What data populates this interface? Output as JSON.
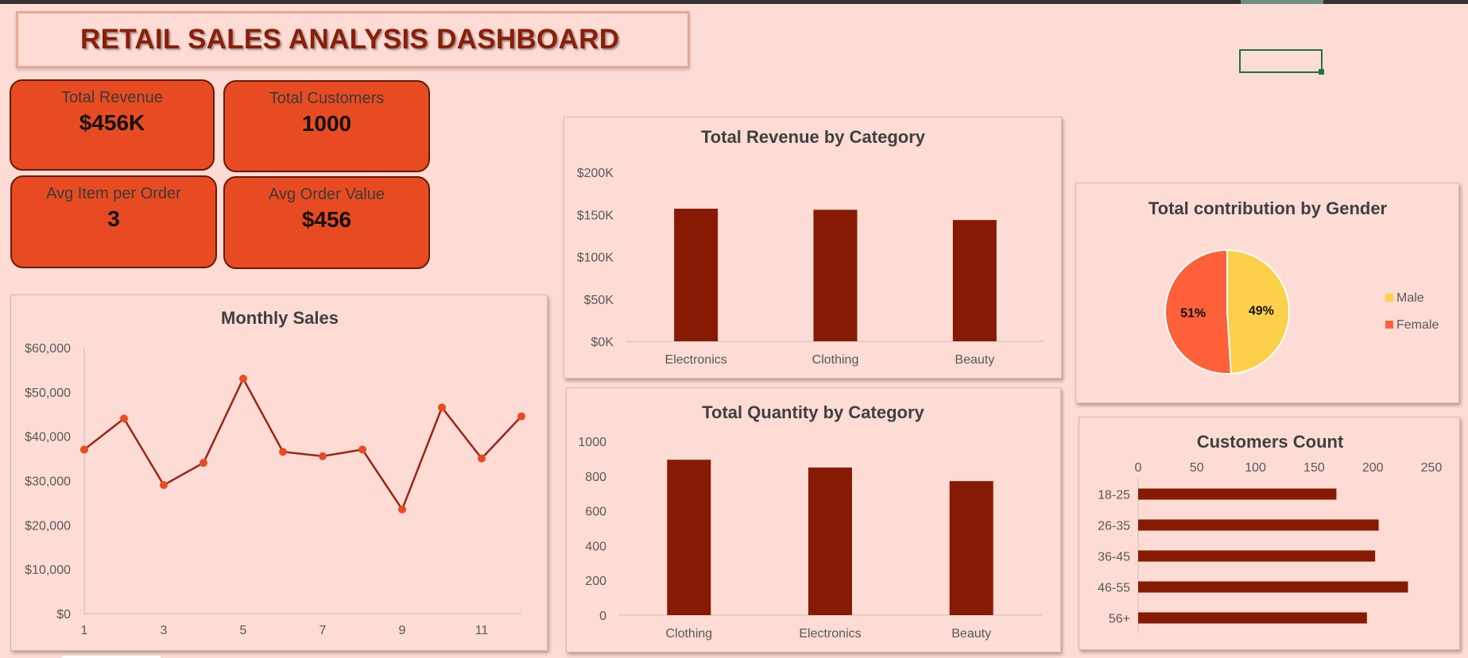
{
  "dashboard": {
    "title": "RETAIL SALES ANALYSIS DASHBOARD"
  },
  "kpis": [
    {
      "label": "Total Revenue",
      "value": "$456K"
    },
    {
      "label": "Total Customers",
      "value": "1000"
    },
    {
      "label": "Avg Item per Order",
      "value": "3"
    },
    {
      "label": "Avg Order Value",
      "value": "$456"
    }
  ],
  "colors": {
    "background": "#fcdcd5",
    "kpi_fill": "#e84b22",
    "bar": "#861a02",
    "line": "#9b2514",
    "marker": "#e84b22",
    "male": "#fdd04a",
    "female": "#fe6139"
  },
  "chart_data": [
    {
      "id": "monthly",
      "type": "line",
      "title": "Monthly Sales",
      "x": [
        1,
        2,
        3,
        4,
        5,
        6,
        7,
        8,
        9,
        10,
        11,
        12
      ],
      "x_tick_labels": [
        "1",
        "3",
        "5",
        "7",
        "9",
        "11"
      ],
      "values": [
        37000,
        44000,
        29000,
        34000,
        53000,
        36500,
        35500,
        37000,
        23500,
        46500,
        35000,
        44500
      ],
      "ylim": [
        0,
        60000
      ],
      "y_tick_labels": [
        "$0",
        "$10,000",
        "$20,000",
        "$30,000",
        "$40,000",
        "$50,000",
        "$60,000"
      ],
      "xlabel": "",
      "ylabel": "",
      "grid": false
    },
    {
      "id": "revenue",
      "type": "bar",
      "title": "Total Revenue by Category",
      "categories": [
        "Electronics",
        "Clothing",
        "Beauty"
      ],
      "values": [
        156905,
        155580,
        143515
      ],
      "ylim": [
        0,
        200000
      ],
      "y_tick_labels": [
        "$0K",
        "$50K",
        "$100K",
        "$150K",
        "$200K"
      ],
      "xlabel": "",
      "ylabel": "",
      "grid": false
    },
    {
      "id": "quantity",
      "type": "bar",
      "title": "Total Quantity by Category",
      "categories": [
        "Clothing",
        "Electronics",
        "Beauty"
      ],
      "values": [
        894,
        849,
        771
      ],
      "ylim": [
        0,
        1000
      ],
      "y_tick_labels": [
        "0",
        "200",
        "400",
        "600",
        "800",
        "1000"
      ],
      "xlabel": "",
      "ylabel": "",
      "grid": false
    },
    {
      "id": "gender",
      "type": "pie",
      "title": "Total contribution by Gender",
      "slices": [
        {
          "name": "Male",
          "value": 49,
          "label": "49%"
        },
        {
          "name": "Female",
          "value": 51,
          "label": "51%"
        }
      ],
      "legend": "right"
    },
    {
      "id": "customers",
      "type": "bar",
      "orientation": "horizontal",
      "title": "Customers Count",
      "categories": [
        "18-25",
        "26-35",
        "36-45",
        "46-55",
        "56+"
      ],
      "values": [
        169,
        205,
        202,
        230,
        195
      ],
      "xlim": [
        0,
        250
      ],
      "x_tick_labels": [
        "0",
        "50",
        "100",
        "150",
        "200",
        "250"
      ],
      "xlabel": "",
      "ylabel": "",
      "grid": false
    }
  ]
}
